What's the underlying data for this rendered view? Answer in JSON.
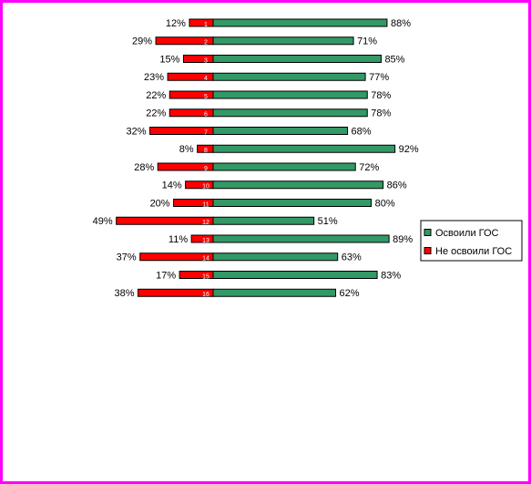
{
  "chart_data": {
    "type": "bar",
    "orientation": "horizontal",
    "diverging": true,
    "legend": "right",
    "categories": [
      "1",
      "2",
      "3",
      "4",
      "5",
      "6",
      "7",
      "8",
      "9",
      "10",
      "11",
      "12",
      "13",
      "14",
      "15",
      "16"
    ],
    "series": [
      {
        "name": "Освоили ГОС",
        "color": "#339966",
        "values": [
          88,
          71,
          85,
          77,
          78,
          78,
          68,
          92,
          72,
          86,
          80,
          51,
          89,
          63,
          83,
          62
        ],
        "value_labels": [
          "88%",
          "71%",
          "85%",
          "77%",
          "78%",
          "78%",
          "68%",
          "92%",
          "72%",
          "86%",
          "80%",
          "51%",
          "89%",
          "63%",
          "83%",
          "62%"
        ]
      },
      {
        "name": "Не освоили ГОС",
        "color": "#ff0000",
        "values": [
          12,
          29,
          15,
          23,
          22,
          22,
          32,
          8,
          28,
          14,
          20,
          49,
          11,
          37,
          17,
          38
        ],
        "value_labels": [
          "12%",
          "29%",
          "15%",
          "23%",
          "22%",
          "22%",
          "32%",
          "8%",
          "28%",
          "14%",
          "20%",
          "49%",
          "11%",
          "37%",
          "17%",
          "38%"
        ]
      }
    ]
  }
}
